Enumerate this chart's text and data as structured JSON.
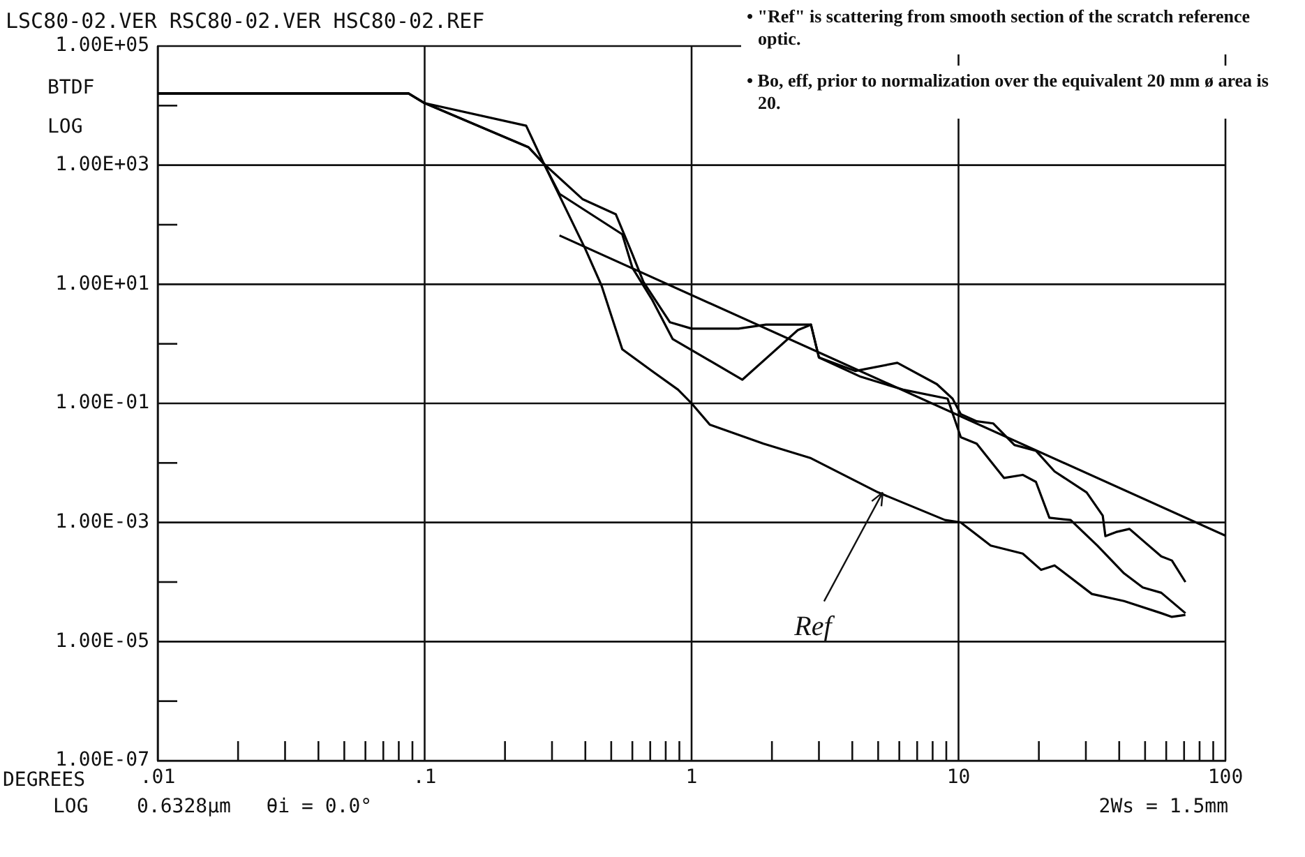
{
  "chart_data": {
    "type": "line",
    "title": "LSC80-02.VER RSC80-02.VER HSC80-02.REF",
    "xlabel": "DEGREES",
    "ylabel": "BTDF LOG",
    "log": "xy",
    "grid": true,
    "marker": "none",
    "line_style": "solid",
    "xlim": [
      0.01,
      100
    ],
    "ylim": [
      1e-07,
      100000
    ],
    "xticks": [
      {
        "value": 0.01,
        "label": ".01"
      },
      {
        "value": 0.02,
        "label": null
      },
      {
        "value": 0.03,
        "label": null
      },
      {
        "value": 0.04,
        "label": null
      },
      {
        "value": 0.05,
        "label": null
      },
      {
        "value": 0.06,
        "label": null
      },
      {
        "value": 0.07,
        "label": null
      },
      {
        "value": 0.08,
        "label": null
      },
      {
        "value": 0.09,
        "label": null
      },
      {
        "value": 0.1,
        "label": ".1"
      },
      {
        "value": 0.2,
        "label": null
      },
      {
        "value": 0.3,
        "label": null
      },
      {
        "value": 0.4,
        "label": null
      },
      {
        "value": 0.5,
        "label": null
      },
      {
        "value": 0.6,
        "label": null
      },
      {
        "value": 0.7,
        "label": null
      },
      {
        "value": 0.8,
        "label": null
      },
      {
        "value": 0.9,
        "label": null
      },
      1,
      {
        "value": 2,
        "label": null
      },
      {
        "value": 3,
        "label": null
      },
      {
        "value": 4,
        "label": null
      },
      {
        "value": 5,
        "label": null
      },
      {
        "value": 6,
        "label": null
      },
      {
        "value": 7,
        "label": null
      },
      {
        "value": 8,
        "label": null
      },
      {
        "value": 9,
        "label": null
      },
      10,
      {
        "value": 20,
        "label": null
      },
      {
        "value": 30,
        "label": null
      },
      {
        "value": 40,
        "label": null
      },
      {
        "value": 50,
        "label": null
      },
      {
        "value": 60,
        "label": null
      },
      {
        "value": 70,
        "label": null
      },
      {
        "value": 80,
        "label": null
      },
      {
        "value": 90,
        "label": null
      },
      100
    ],
    "yticks": [
      {
        "value": 1e-07,
        "label": "1.00E-07"
      },
      {
        "value": 1e-06,
        "label": null
      },
      {
        "value": 1e-05,
        "label": "1.00E-05"
      },
      {
        "value": 0.0001,
        "label": null
      },
      {
        "value": 0.001,
        "label": "1.00E-03"
      },
      {
        "value": 0.01,
        "label": null
      },
      {
        "value": 0.1,
        "label": "1.00E-01"
      },
      {
        "value": 1,
        "label": null
      },
      {
        "value": 10,
        "label": "1.00E+01"
      },
      {
        "value": 100,
        "label": null
      },
      {
        "value": 1000,
        "label": "1.00E+03"
      },
      {
        "value": 10000,
        "label": null
      },
      {
        "value": 100000,
        "label": "1.00E+05"
      }
    ],
    "series": [
      {
        "type": "line",
        "color": "#000000",
        "x": [
          0.01,
          0.087,
          0.1,
          0.24,
          0.28,
          0.39,
          0.52,
          0.6,
          0.66,
          0.83,
          1,
          1.5,
          1.9,
          2.8,
          3.0,
          4.1,
          5.9,
          8.3,
          9.5,
          10.2,
          11.7,
          13.5,
          16.2,
          19.5,
          22.9,
          30.2,
          34.7,
          35.5,
          38.9,
          43.7,
          49,
          57.5,
          63,
          70.8
        ],
        "values": [
          16000,
          16000,
          11000,
          4600,
          1050,
          270,
          150,
          32,
          11,
          2.3,
          1.8,
          1.8,
          2.1,
          2.1,
          0.59,
          0.35,
          0.48,
          0.21,
          0.12,
          0.066,
          0.05,
          0.046,
          0.02,
          0.016,
          0.0072,
          0.0032,
          0.0013,
          0.00059,
          0.00069,
          0.00078,
          0.0005,
          0.00027,
          0.00023,
          0.0001
        ]
      },
      {
        "type": "line",
        "color": "#000000",
        "x": [
          0.01,
          0.087,
          0.1,
          0.245,
          0.28,
          0.32,
          0.55,
          0.6,
          0.71,
          0.85,
          1.55,
          2.5,
          2.8,
          3.0,
          4.3,
          6.2,
          9.1,
          10.2,
          11.7,
          14.8,
          17.4,
          19.5,
          21.9,
          26.3,
          33.1,
          41.7,
          49,
          57.5,
          70.8
        ],
        "values": [
          16000,
          16000,
          11000,
          2000,
          1050,
          330,
          69,
          19,
          5.6,
          1.2,
          0.25,
          1.7,
          2.1,
          0.59,
          0.28,
          0.17,
          0.12,
          0.027,
          0.021,
          0.0056,
          0.0063,
          0.0048,
          0.0012,
          0.0011,
          0.00041,
          0.00014,
          8.1e-05,
          6.6e-05,
          3e-05
        ]
      },
      {
        "type": "line",
        "color": "#000000",
        "x": [
          0.01,
          0.087,
          0.1,
          0.245,
          0.28,
          0.4,
          0.46,
          0.55,
          0.71,
          0.89,
          1,
          1.17,
          1.86,
          2.8,
          5.0,
          8.9,
          10.2,
          13.2,
          17.4,
          20.4,
          22.9,
          31.6,
          41.7,
          57.5,
          63,
          70.8
        ],
        "values": [
          16000,
          16000,
          11000,
          2000,
          1050,
          39,
          9.5,
          0.81,
          0.35,
          0.17,
          0.1,
          0.044,
          0.021,
          0.012,
          0.0032,
          0.0011,
          0.001,
          0.00041,
          0.0003,
          0.00016,
          0.00019,
          6.3e-05,
          4.8e-05,
          3e-05,
          2.6e-05,
          2.8e-05
        ]
      },
      {
        "type": "line",
        "color": "#000000",
        "x": [
          0.32,
          100
        ],
        "values": [
          66,
          0.0006
        ]
      }
    ],
    "annotations": [
      "• \"Ref\" is scattering from smooth section of the scratch reference optic.",
      "• Bo, eff, prior to normalization over the equivalent 20 mm ø area is 20.",
      "LOG",
      "0.6328µm   θi = 0.0°",
      "2Ws = 1.5mm",
      {
        "text": "Ref",
        "x": 5.2,
        "y": 0.0032
      }
    ]
  }
}
